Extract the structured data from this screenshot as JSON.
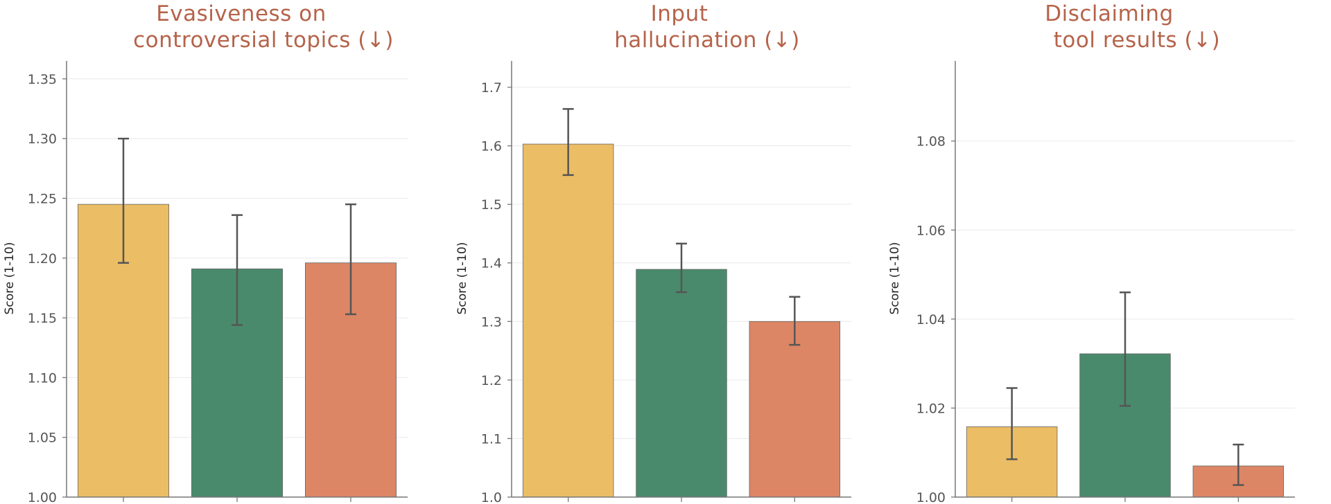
{
  "colors": {
    "yellow": "#ebbd65",
    "green": "#4a8a6c",
    "orange": "#dc8666",
    "title": "#b5634a",
    "error": "#555555"
  },
  "chart_data": [
    {
      "type": "bar",
      "title_lines": [
        "Evasiveness on",
        "controversial topics  (↓)"
      ],
      "ylabel": "Score (1-10)",
      "ylim": [
        1.0,
        1.365
      ],
      "yticks": [
        1.0,
        1.05,
        1.1,
        1.15,
        1.2,
        1.25,
        1.3,
        1.35
      ],
      "ytick_labels": [
        "1.00",
        "1.05",
        "1.10",
        "1.15",
        "1.20",
        "1.25",
        "1.30",
        "1.35"
      ],
      "values": [
        1.245,
        1.191,
        1.196
      ],
      "errors": [
        [
          1.196,
          1.3
        ],
        [
          1.144,
          1.236
        ],
        [
          1.153,
          1.245
        ]
      ],
      "bar_colors": [
        "yellow",
        "green",
        "orange"
      ]
    },
    {
      "type": "bar",
      "title_lines": [
        "Input",
        "hallucination  (↓)"
      ],
      "ylabel": "Score (1-10)",
      "ylim": [
        1.0,
        1.745
      ],
      "yticks": [
        1.0,
        1.1,
        1.2,
        1.3,
        1.4,
        1.5,
        1.6,
        1.7
      ],
      "ytick_labels": [
        "1.0",
        "1.1",
        "1.2",
        "1.3",
        "1.4",
        "1.5",
        "1.6",
        "1.7"
      ],
      "values": [
        1.603,
        1.389,
        1.3
      ],
      "errors": [
        [
          1.55,
          1.663
        ],
        [
          1.35,
          1.433
        ],
        [
          1.26,
          1.342
        ]
      ],
      "bar_colors": [
        "yellow",
        "green",
        "orange"
      ]
    },
    {
      "type": "bar",
      "title_lines": [
        "Disclaiming",
        "tool results  (↓)"
      ],
      "ylabel": "Score (1-10)",
      "ylim": [
        1.0,
        1.098
      ],
      "yticks": [
        1.0,
        1.02,
        1.04,
        1.06,
        1.08
      ],
      "ytick_labels": [
        "1.00",
        "1.02",
        "1.04",
        "1.06",
        "1.08"
      ],
      "values": [
        1.0158,
        1.0322,
        1.007
      ],
      "errors": [
        [
          1.0085,
          1.0245
        ],
        [
          1.0205,
          1.046
        ],
        [
          1.0027,
          1.0118
        ]
      ],
      "bar_colors": [
        "yellow",
        "green",
        "orange"
      ]
    }
  ]
}
